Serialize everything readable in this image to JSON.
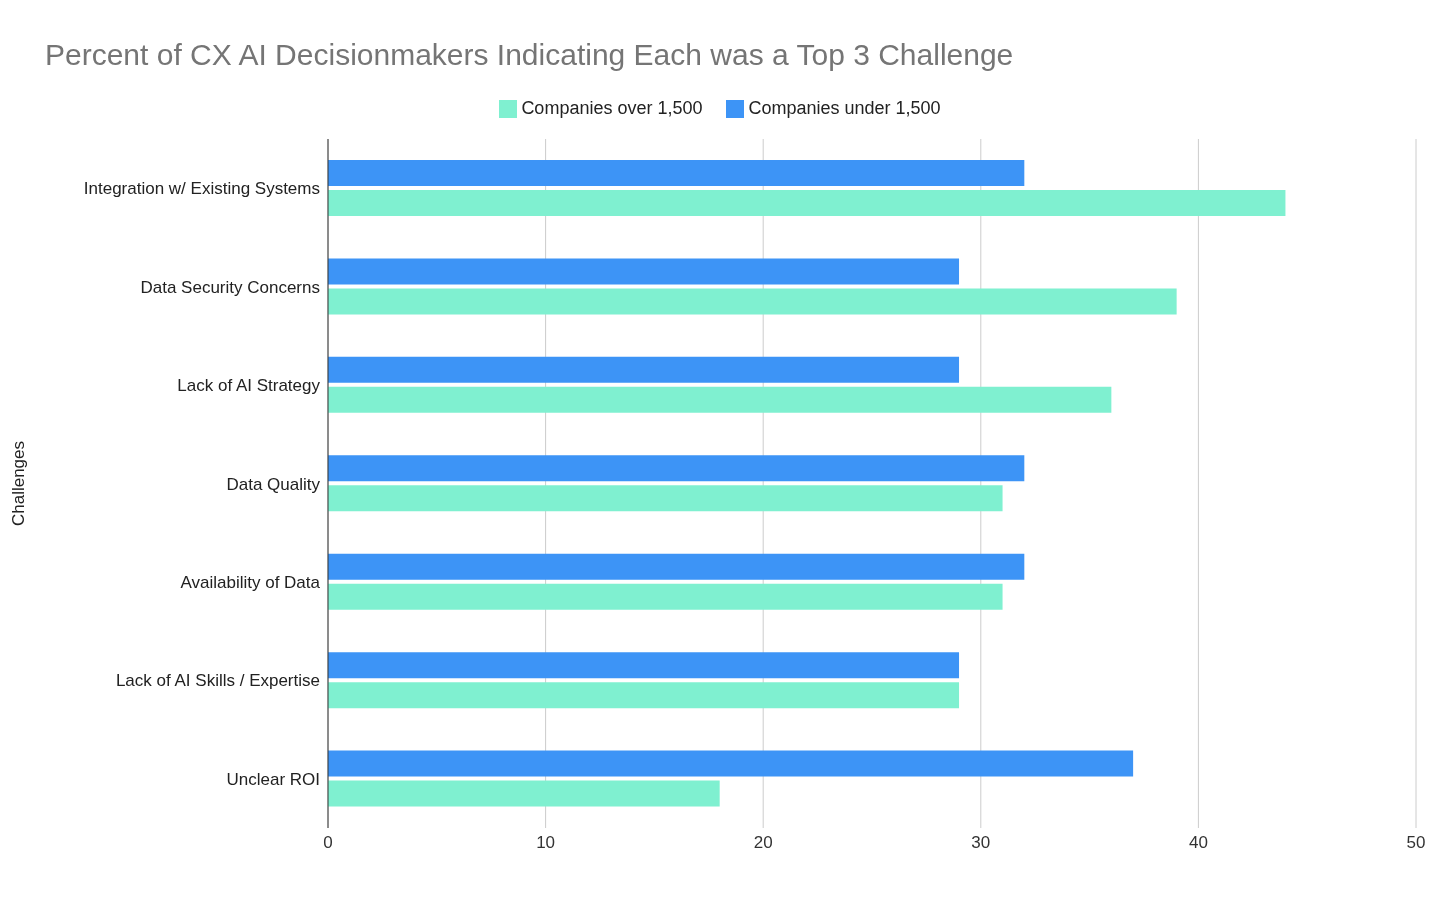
{
  "chart_data": {
    "type": "bar",
    "orientation": "horizontal",
    "title": "Percent of CX AI Decisionmakers Indicating Each was a Top 3 Challenge",
    "ylabel": "Challenges",
    "categories": [
      "Integration w/ Existing Systems",
      "Data Security Concerns",
      "Lack of AI Strategy",
      "Data Quality",
      "Availability of Data",
      "Lack of AI Skills / Expertise",
      "Unclear ROI"
    ],
    "series": [
      {
        "name": "Companies under 1,500",
        "color": "#3d94f6",
        "values": [
          32,
          29,
          29,
          32,
          32,
          29,
          37
        ]
      },
      {
        "name": "Companies over 1,500",
        "color": "#7ff0d0",
        "values": [
          44,
          39,
          36,
          31,
          31,
          29,
          18
        ]
      }
    ],
    "xlim": [
      0,
      50
    ],
    "xticks": [
      0,
      10,
      20,
      30,
      40,
      50
    ],
    "grid": "x",
    "legend": "top"
  }
}
